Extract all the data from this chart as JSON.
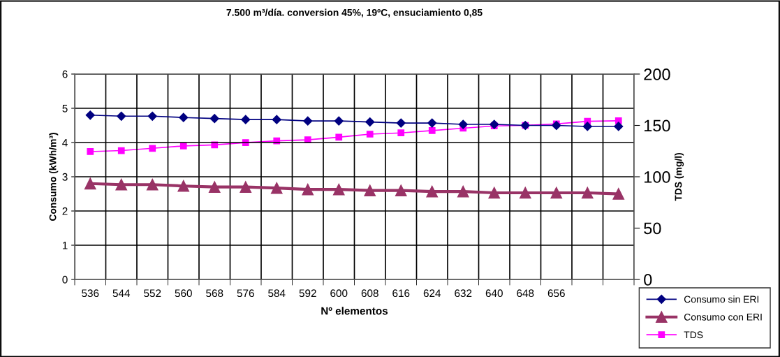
{
  "chart_data": {
    "type": "line",
    "title": "7.500 m³/día. conversion 45%, 19ºC, ensuciamiento 0,85",
    "xlabel": "Nº elementos",
    "ylabel": "Consumo (kWh/m³)",
    "y2label": "TDS (mg/l)",
    "categories": [
      "536",
      "544",
      "552",
      "560",
      "568",
      "576",
      "584",
      "592",
      "600",
      "608",
      "616",
      "624",
      "632",
      "640",
      "648",
      "656",
      null,
      null
    ],
    "series": [
      {
        "name": "Consumo sin ERI",
        "color": "#000080",
        "marker": "diamond",
        "values": [
          4.8,
          4.77,
          4.77,
          4.73,
          4.7,
          4.67,
          4.67,
          4.63,
          4.63,
          4.6,
          4.57,
          4.57,
          4.53,
          4.53,
          4.5,
          4.5,
          4.47,
          4.47
        ]
      },
      {
        "name": "Consumo con ERI",
        "color": "#993366",
        "marker": "triangle",
        "values": [
          2.8,
          2.77,
          2.77,
          2.73,
          2.7,
          2.7,
          2.67,
          2.63,
          2.63,
          2.6,
          2.6,
          2.57,
          2.57,
          2.53,
          2.53,
          2.53,
          2.53,
          2.5
        ]
      },
      {
        "name": "TDS",
        "color": "#ff00ff",
        "marker": "square",
        "axis": "y2",
        "values": [
          124.5,
          125.5,
          127.7,
          130,
          131,
          133.3,
          135,
          136,
          138.5,
          141.5,
          142.7,
          145,
          147.3,
          149.5,
          150,
          151.5,
          154,
          154.5
        ]
      }
    ],
    "ylim": [
      0,
      6
    ],
    "yticks": [
      0,
      1,
      2,
      3,
      4,
      5,
      6
    ],
    "y2lim": [
      0,
      200
    ],
    "y2ticks": [
      0,
      50,
      100,
      150,
      200
    ],
    "grid": true,
    "legend": "bottom right",
    "line_style": "solid"
  }
}
